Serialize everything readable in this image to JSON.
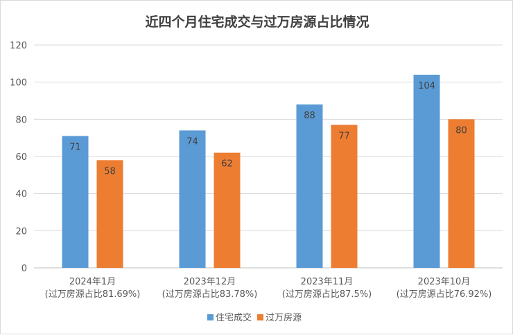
{
  "chart_data": {
    "type": "bar",
    "title": "近四个月住宅成交与过万房源占比情况",
    "categories": [
      "2024年1月",
      "2023年12月",
      "2023年11月",
      "2023年10月"
    ],
    "category_sublabels": [
      "(过万房源占比81.69%)",
      "(过万房源占比83.78%)",
      "(过万房源占比87.5%)",
      "(过万房源占比76.92%)"
    ],
    "series": [
      {
        "name": "住宅成交",
        "values": [
          71,
          74,
          88,
          104
        ],
        "color": "#5b9bd5"
      },
      {
        "name": "过万房源",
        "values": [
          58,
          62,
          77,
          80
        ],
        "color": "#ed7d31"
      }
    ],
    "ylim": [
      0,
      120
    ],
    "yticks": [
      0,
      20,
      40,
      60,
      80,
      100,
      120
    ],
    "grid": true,
    "legend": "bottom",
    "xlabel": "",
    "ylabel": ""
  }
}
